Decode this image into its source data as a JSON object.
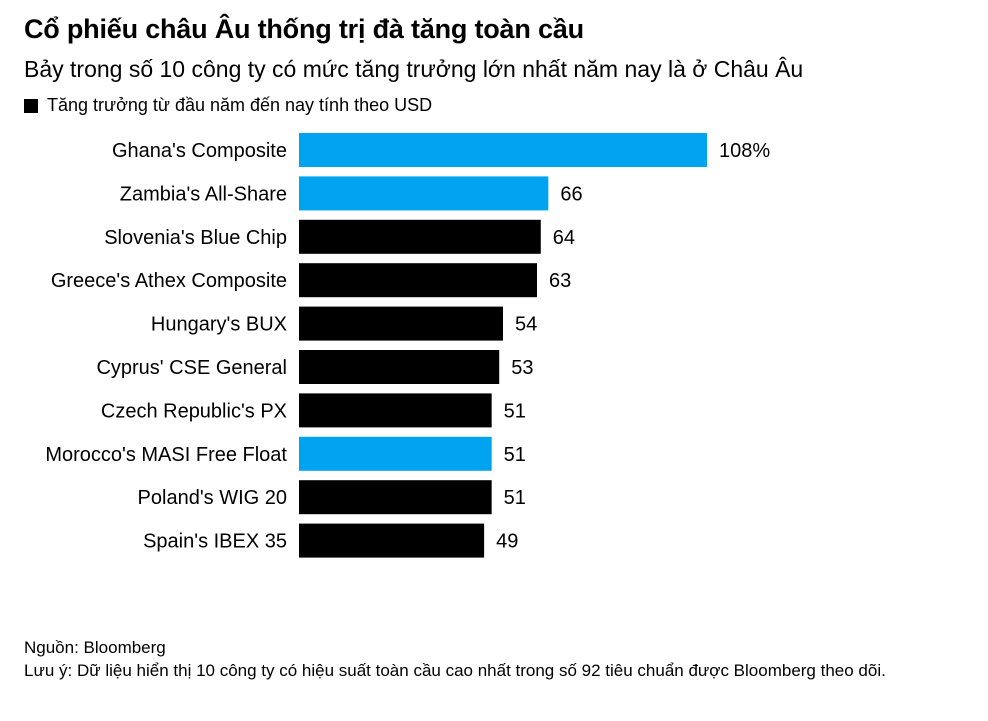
{
  "chart_data": {
    "type": "bar",
    "orientation": "horizontal",
    "title": "Cổ phiếu châu Âu thống trị đà tăng toàn cầu",
    "subtitle": "Bảy trong số 10 công ty có mức tăng trưởng lớn nhất năm nay là ở Châu Âu",
    "legend": [
      {
        "label": "Tăng trưởng từ đầu năm đến nay tính theo USD",
        "color": "#000000"
      }
    ],
    "categories": [
      "Ghana's Composite",
      "Zambia's All-Share",
      "Slovenia's Blue Chip",
      "Greece's Athex Composite",
      "Hungary's BUX",
      "Cyprus' CSE General",
      "Czech Republic's PX",
      "Morocco's MASI Free Float",
      "Poland's WIG 20",
      "Spain's IBEX 35"
    ],
    "values": [
      108,
      66,
      64,
      63,
      54,
      53,
      51,
      51,
      51,
      49
    ],
    "value_labels": [
      "108%",
      "66",
      "64",
      "63",
      "54",
      "53",
      "51",
      "51",
      "51",
      "49"
    ],
    "bar_colors": [
      "#00a3f0",
      "#00a3f0",
      "#000000",
      "#000000",
      "#000000",
      "#000000",
      "#000000",
      "#00a3f0",
      "#000000",
      "#000000"
    ],
    "xlim": [
      0,
      108
    ],
    "xlabel": "",
    "ylabel": "",
    "grid": false
  },
  "footer": {
    "source": "Nguồn: Bloomberg",
    "note": "Lưu ý: Dữ liệu hiển thị 10 công ty có hiệu suất toàn cầu cao nhất trong số 92 tiêu chuẩn được Bloomberg theo dõi."
  }
}
